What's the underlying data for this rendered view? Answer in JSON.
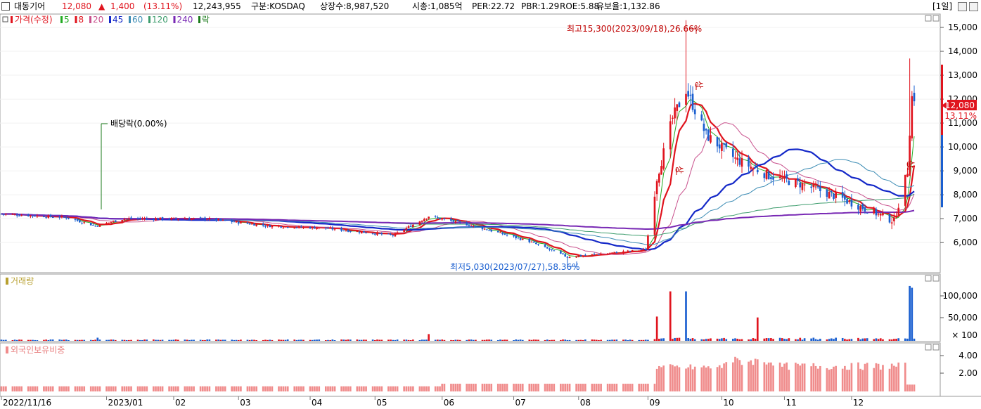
{
  "header": {
    "stock_name": "대동기어",
    "price": "12,080",
    "change_arrow": "▲",
    "change": "1,400",
    "change_pct": "(13.11%)",
    "volume": "12,243,955",
    "market": "구분:KOSDAQ",
    "listed_shares": "상장수:8,987,520",
    "market_cap": "시총:1,085억",
    "per": "PER:22.72",
    "pbr": "PBR:1.29",
    "roe": "ROE:5.88",
    "float": "유보율:1,132.86",
    "period_label": "[1일]"
  },
  "colors": {
    "up": "#e0141e",
    "down": "#1a5fd0",
    "ma5": "#22aa22",
    "ma8": "#e0141e",
    "ma20": "#c8508c",
    "ma45": "#1428c8",
    "ma60": "#3c8cb4",
    "ma120": "#3c9c6c",
    "ma240": "#7828b4",
    "foreign": "#f08c8c"
  },
  "legend": {
    "price": "가격(수정)",
    "ma": [
      {
        "label": "5",
        "color": "#22aa22"
      },
      {
        "label": "8",
        "color": "#e0141e"
      },
      {
        "label": "20",
        "color": "#c8508c"
      },
      {
        "label": "45",
        "color": "#1428c8"
      },
      {
        "label": "60",
        "color": "#3c8cb4"
      },
      {
        "label": "120",
        "color": "#3c9c6c"
      },
      {
        "label": "240",
        "color": "#7828b4"
      }
    ],
    "extra": "락"
  },
  "annotations": {
    "high": "최고15,300(2023/09/18),26.66%",
    "low": "최저5,030(2023/07/27),58.36%",
    "dividend": "배당락(0.00%)",
    "sang": "상",
    "last_price": "12,080",
    "last_pct": "13.11%"
  },
  "volume_panel": {
    "title": "거래량",
    "ticks": [
      "100,000",
      "50,000",
      "× 100"
    ]
  },
  "foreign_panel": {
    "title": "외국인보유비중",
    "ticks": [
      "4.00",
      "2.00"
    ]
  },
  "x_axis": [
    "2022/11/16",
    "2023/01",
    "02",
    "03",
    "04",
    "05",
    "06",
    "07",
    "08",
    "09",
    "10",
    "11",
    "12"
  ],
  "chart_data": {
    "type": "candlestick",
    "y_ticks": [
      6000,
      7000,
      8000,
      9000,
      10000,
      11000,
      12000,
      13000,
      14000,
      15000
    ],
    "ylim": [
      4800,
      15500
    ],
    "x_range": [
      "2022/11/16",
      "2023/12/29"
    ],
    "key_points": [
      {
        "date": "2022/11/16",
        "close": 7200
      },
      {
        "date": "2022/12/15",
        "close": 7050
      },
      {
        "date": "2022/12/28",
        "close": 6700
      },
      {
        "date": "2023/01/10",
        "close": 7000
      },
      {
        "date": "2023/02/15",
        "close": 7000
      },
      {
        "date": "2023/03/15",
        "close": 6700
      },
      {
        "date": "2023/04/10",
        "close": 6600
      },
      {
        "date": "2023/05/10",
        "close": 6300
      },
      {
        "date": "2023/05/26",
        "close": 7100
      },
      {
        "date": "2023/06/15",
        "close": 6700
      },
      {
        "date": "2023/07/10",
        "close": 6050
      },
      {
        "date": "2023/07/27",
        "low": 5030,
        "close": 5400
      },
      {
        "date": "2023/08/31",
        "close": 5700
      },
      {
        "date": "2023/09/05",
        "close": 8700
      },
      {
        "date": "2023/09/12",
        "close": 11200
      },
      {
        "date": "2023/09/18",
        "high": 15300,
        "close": 12400
      },
      {
        "date": "2023/09/27",
        "close": 10500
      },
      {
        "date": "2023/10/10",
        "close": 9500
      },
      {
        "date": "2023/10/25",
        "close": 8800
      },
      {
        "date": "2023/11/10",
        "close": 8400
      },
      {
        "date": "2023/11/25",
        "close": 7900
      },
      {
        "date": "2023/12/10",
        "close": 7300
      },
      {
        "date": "2023/12/20",
        "close": 6900
      },
      {
        "date": "2023/12/26",
        "close": 9000
      },
      {
        "date": "2023/12/27",
        "high": 13700,
        "close": 10700
      },
      {
        "date": "2023/12/28",
        "close": 12080
      }
    ],
    "volume_spikes": [
      {
        "date": "2022/12/29",
        "value": 7000
      },
      {
        "date": "2023/05/26",
        "value": 15000
      },
      {
        "date": "2023/09/05",
        "value": 54000
      },
      {
        "date": "2023/09/11",
        "value": 110000
      },
      {
        "date": "2023/09/18",
        "value": 110000
      },
      {
        "date": "2023/10/20",
        "value": 52000
      },
      {
        "date": "2023/12/27",
        "value": 122000
      },
      {
        "date": "2023/12/28",
        "value": 118000
      }
    ],
    "foreign_ratio_ylim": [
      0,
      4.6
    ],
    "foreign_ratio_levels": [
      {
        "period": "2022/11-2023/05",
        "value": 0.7
      },
      {
        "period": "2023/06-2023/08",
        "value": 1.0
      },
      {
        "period": "2023/09-2023/10",
        "value": 2.9
      },
      {
        "period": "2023/10/15",
        "value": 4.1
      },
      {
        "period": "2023/11-2023/12",
        "value": 2.8
      },
      {
        "period": "2023/12/28",
        "value": 0.8
      }
    ]
  }
}
